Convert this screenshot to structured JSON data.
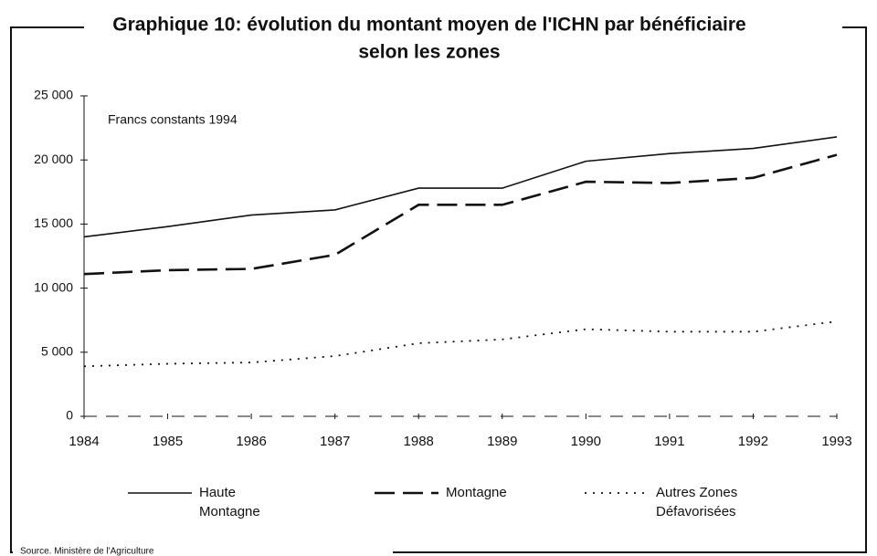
{
  "chart_data": {
    "type": "line",
    "title": [
      "Graphique 10: évolution du montant moyen de l'ICHN par bénéficiaire",
      "selon les zones"
    ],
    "annotation": "Francs constants 1994",
    "source": "Source. Ministère de l'Agriculture",
    "categories": [
      "1984",
      "1985",
      "1986",
      "1987",
      "1988",
      "1989",
      "1990",
      "1991",
      "1992",
      "1993"
    ],
    "series": [
      {
        "name": "Haute Montagne",
        "color": "#111111",
        "linestyle": "solid",
        "values": [
          14000,
          14800,
          15700,
          16100,
          17800,
          17800,
          19900,
          20500,
          20900,
          21800
        ]
      },
      {
        "name": "Montagne",
        "color": "#111111",
        "linestyle": "dashed",
        "values": [
          11100,
          11400,
          11500,
          12600,
          16500,
          16500,
          18300,
          18200,
          18600,
          20400
        ]
      },
      {
        "name": "Autres Zones Défavorisées",
        "color": "#111111",
        "linestyle": "dotted",
        "values": [
          3900,
          4100,
          4200,
          4700,
          5700,
          6000,
          6800,
          6600,
          6600,
          7400
        ]
      }
    ],
    "ylim": [
      0,
      25000
    ],
    "yticks": [
      0,
      {
        "value": 5000,
        "label": "5 000"
      },
      {
        "value": 10000,
        "label": "10 000"
      },
      {
        "value": 15000,
        "label": "15 000"
      },
      {
        "value": 20000,
        "label": "20 000"
      },
      {
        "value": 25000,
        "label": "25 000"
      }
    ],
    "grid": false,
    "legend": "bottom"
  }
}
